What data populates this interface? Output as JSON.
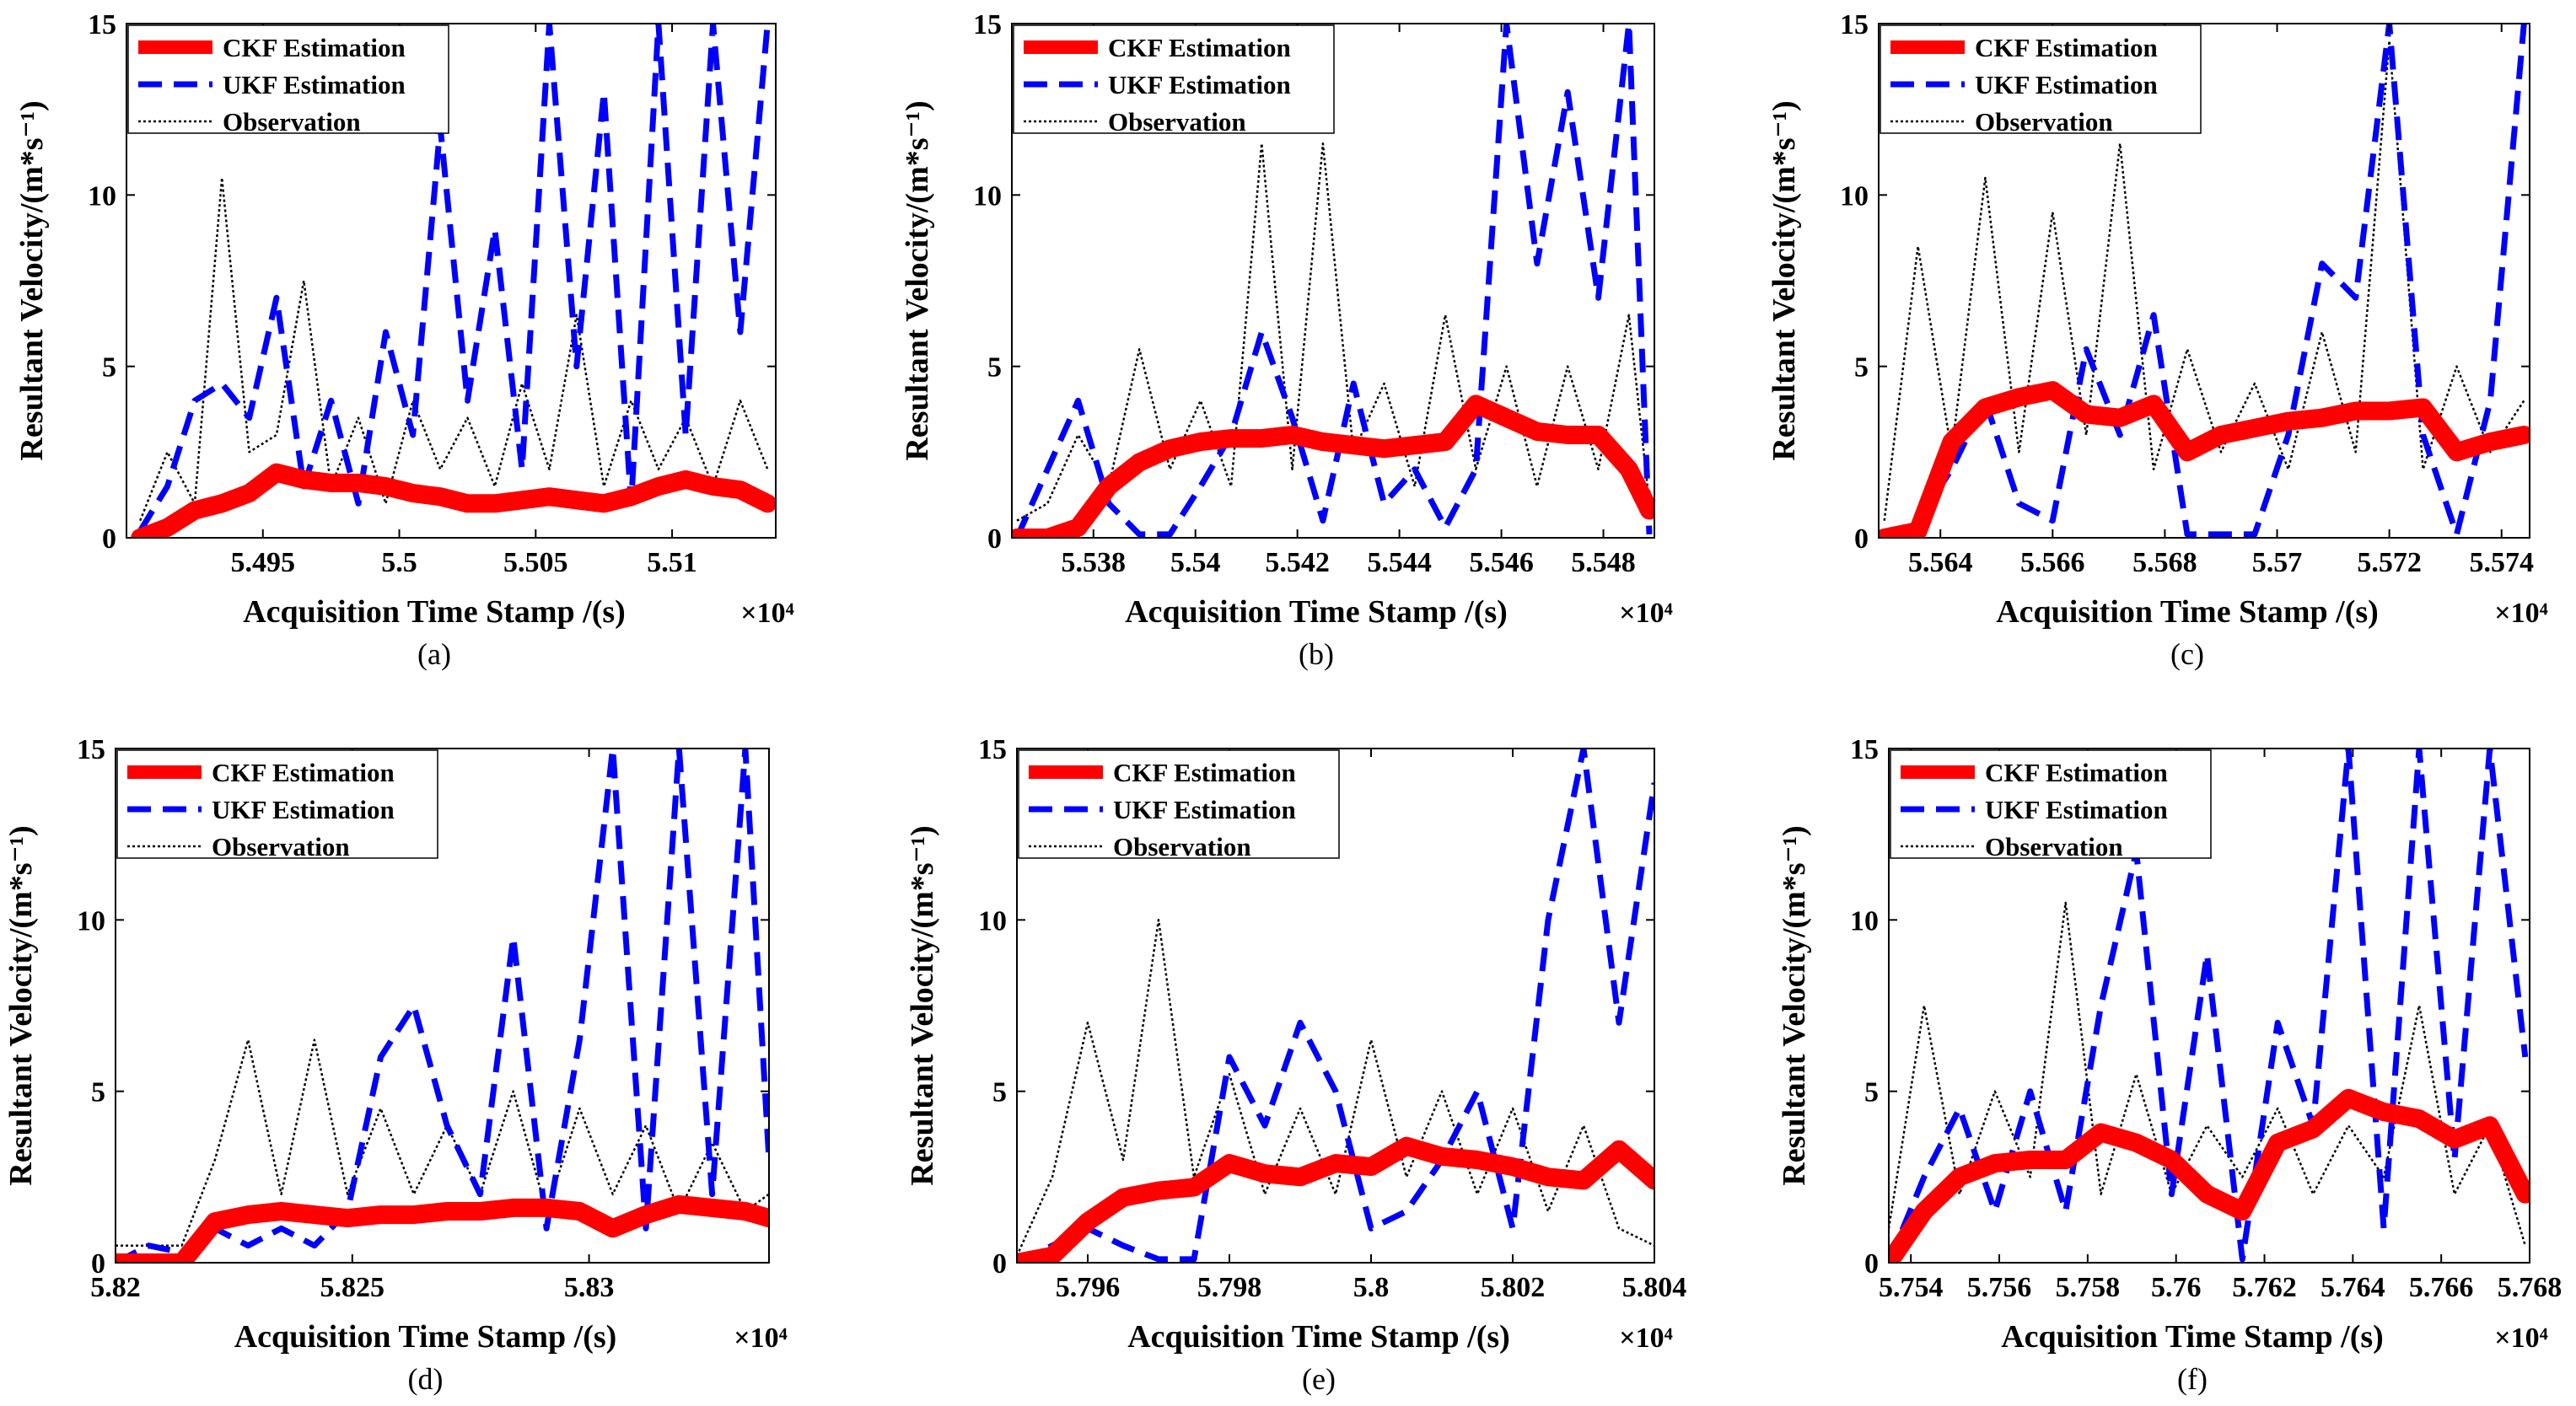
{
  "figure": {
    "legend_entries": [
      "CKF Estimation",
      "UKF Estimation",
      "Observation"
    ],
    "ylabel": "Resultant Velocity/(m*s⁻¹)",
    "xlabel": "Acquisition Time Stamp /(s)",
    "x_exponent": "×10⁴"
  },
  "styles": {
    "ckf_color": "#ff0000",
    "ukf_color": "#0000ff",
    "obs_color": "#000000"
  },
  "chart_data": [
    {
      "type": "line",
      "caption": "(a)",
      "xlim": [
        5.49,
        5.5138
      ],
      "ylim": [
        0,
        15
      ],
      "xticks": [
        5.495,
        5.5,
        5.505,
        5.51
      ],
      "xtick_labels": [
        "5.495",
        "5.5",
        "5.505",
        "5.51"
      ],
      "yticks": [
        0,
        5,
        10,
        15
      ],
      "ytick_labels": [
        "0",
        "5",
        "10",
        "15"
      ],
      "series": [
        {
          "name": "CKF Estimation",
          "x": [
            5.4905,
            5.4915,
            5.4925,
            5.4935,
            5.4945,
            5.4955,
            5.4965,
            5.4975,
            5.4985,
            5.4995,
            5.5005,
            5.5015,
            5.5025,
            5.5035,
            5.5045,
            5.5055,
            5.5065,
            5.5075,
            5.5085,
            5.5095,
            5.5105,
            5.5115,
            5.5125,
            5.5135
          ],
          "y": [
            0.0,
            0.3,
            0.8,
            1.0,
            1.3,
            1.9,
            1.7,
            1.6,
            1.6,
            1.5,
            1.3,
            1.2,
            1.0,
            1.0,
            1.1,
            1.2,
            1.1,
            1.0,
            1.2,
            1.5,
            1.7,
            1.5,
            1.4,
            1.0
          ]
        },
        {
          "name": "UKF Estimation",
          "x": [
            5.4905,
            5.4915,
            5.4925,
            5.4935,
            5.4945,
            5.4955,
            5.4965,
            5.4975,
            5.4985,
            5.4995,
            5.5005,
            5.5015,
            5.5025,
            5.5035,
            5.5045,
            5.5055,
            5.5065,
            5.5075,
            5.5085,
            5.5095,
            5.5105,
            5.5115,
            5.5125,
            5.5135
          ],
          "y": [
            0.2,
            1.5,
            4.0,
            4.5,
            3.5,
            7.0,
            1.5,
            4.0,
            1.0,
            6.0,
            3.0,
            12.0,
            4.0,
            9.0,
            2.0,
            15.0,
            5.0,
            13.0,
            1.0,
            15.0,
            3.0,
            15.0,
            6.0,
            15.0
          ]
        },
        {
          "name": "Observation",
          "x": [
            5.4905,
            5.4915,
            5.4925,
            5.4935,
            5.4945,
            5.4955,
            5.4965,
            5.4975,
            5.4985,
            5.4995,
            5.5005,
            5.5015,
            5.5025,
            5.5035,
            5.5045,
            5.5055,
            5.5065,
            5.5075,
            5.5085,
            5.5095,
            5.5105,
            5.5115,
            5.5125,
            5.5135
          ],
          "y": [
            0.5,
            2.5,
            1.0,
            10.5,
            2.5,
            3.0,
            7.5,
            1.5,
            3.5,
            1.0,
            4.0,
            2.0,
            3.5,
            1.5,
            4.5,
            2.0,
            6.5,
            1.5,
            4.0,
            2.0,
            3.5,
            1.5,
            4.0,
            2.0
          ]
        }
      ]
    },
    {
      "type": "line",
      "caption": "(b)",
      "xlim": [
        5.5364,
        5.549
      ],
      "ylim": [
        0,
        15
      ],
      "xticks": [
        5.538,
        5.54,
        5.542,
        5.544,
        5.546,
        5.548
      ],
      "xtick_labels": [
        "5.538",
        "5.54",
        "5.542",
        "5.544",
        "5.546",
        "5.548"
      ],
      "yticks": [
        0,
        5,
        10,
        15
      ],
      "ytick_labels": [
        "0",
        "5",
        "10",
        "15"
      ],
      "series": [
        {
          "name": "CKF Estimation",
          "x": [
            5.5365,
            5.5371,
            5.5377,
            5.5383,
            5.5389,
            5.5395,
            5.5401,
            5.5407,
            5.5413,
            5.5419,
            5.5425,
            5.5431,
            5.5437,
            5.5443,
            5.5449,
            5.5455,
            5.5461,
            5.5467,
            5.5473,
            5.5479,
            5.5485,
            5.5489
          ],
          "y": [
            0.0,
            0.0,
            0.3,
            1.5,
            2.2,
            2.6,
            2.8,
            2.9,
            2.9,
            3.0,
            2.8,
            2.7,
            2.6,
            2.7,
            2.8,
            3.9,
            3.5,
            3.1,
            3.0,
            3.0,
            2.0,
            0.8
          ]
        },
        {
          "name": "UKF Estimation",
          "x": [
            5.5365,
            5.5371,
            5.5377,
            5.5383,
            5.5389,
            5.5395,
            5.5401,
            5.5407,
            5.5413,
            5.5419,
            5.5425,
            5.5431,
            5.5437,
            5.5443,
            5.5449,
            5.5455,
            5.5461,
            5.5467,
            5.5473,
            5.5479,
            5.5485,
            5.5489
          ],
          "y": [
            0.0,
            2.0,
            4.0,
            1.0,
            0.1,
            0.1,
            1.5,
            3.0,
            6.0,
            3.5,
            0.5,
            4.5,
            1.0,
            2.0,
            0.3,
            2.0,
            15.0,
            8.0,
            13.0,
            7.0,
            15.0,
            0.1
          ]
        },
        {
          "name": "Observation",
          "x": [
            5.5365,
            5.5371,
            5.5377,
            5.5383,
            5.5389,
            5.5395,
            5.5401,
            5.5407,
            5.5413,
            5.5419,
            5.5425,
            5.5431,
            5.5437,
            5.5443,
            5.5449,
            5.5455,
            5.5461,
            5.5467,
            5.5473,
            5.5479,
            5.5485,
            5.5489
          ],
          "y": [
            0.5,
            1.0,
            3.0,
            1.5,
            5.5,
            2.0,
            4.0,
            1.5,
            11.5,
            2.0,
            11.5,
            2.5,
            4.5,
            1.5,
            6.5,
            2.0,
            5.0,
            1.5,
            5.0,
            2.0,
            6.5,
            1.0
          ]
        }
      ]
    },
    {
      "type": "line",
      "caption": "(c)",
      "xlim": [
        5.5629,
        5.5745
      ],
      "ylim": [
        0,
        15
      ],
      "xticks": [
        5.564,
        5.566,
        5.568,
        5.57,
        5.572,
        5.574
      ],
      "xtick_labels": [
        "5.564",
        "5.566",
        "5.568",
        "5.57",
        "5.572",
        "5.574"
      ],
      "yticks": [
        0,
        5,
        10,
        15
      ],
      "ytick_labels": [
        "0",
        "5",
        "10",
        "15"
      ],
      "series": [
        {
          "name": "CKF Estimation",
          "x": [
            5.563,
            5.5636,
            5.5642,
            5.5648,
            5.5654,
            5.566,
            5.5666,
            5.5672,
            5.5678,
            5.5684,
            5.569,
            5.5696,
            5.5702,
            5.5708,
            5.5714,
            5.572,
            5.5726,
            5.5732,
            5.5738,
            5.5744
          ],
          "y": [
            0.0,
            0.2,
            2.8,
            3.8,
            4.1,
            4.3,
            3.6,
            3.5,
            3.9,
            2.5,
            3.0,
            3.2,
            3.4,
            3.5,
            3.7,
            3.7,
            3.8,
            2.5,
            2.8,
            3.0
          ]
        },
        {
          "name": "UKF Estimation",
          "x": [
            5.563,
            5.5636,
            5.5642,
            5.5648,
            5.5654,
            5.566,
            5.5666,
            5.5672,
            5.5678,
            5.5684,
            5.569,
            5.5696,
            5.5702,
            5.5708,
            5.5714,
            5.572,
            5.5726,
            5.5732,
            5.5738,
            5.5744
          ],
          "y": [
            0.0,
            0.5,
            2.0,
            4.0,
            1.0,
            0.5,
            5.5,
            3.0,
            6.5,
            0.1,
            0.1,
            0.1,
            3.0,
            8.0,
            7.0,
            15.0,
            3.0,
            0.1,
            4.0,
            15.0
          ]
        },
        {
          "name": "Observation",
          "x": [
            5.563,
            5.5636,
            5.5642,
            5.5648,
            5.5654,
            5.566,
            5.5666,
            5.5672,
            5.5678,
            5.5684,
            5.569,
            5.5696,
            5.5702,
            5.5708,
            5.5714,
            5.572,
            5.5726,
            5.5732,
            5.5738,
            5.5744
          ],
          "y": [
            0.5,
            8.5,
            2.5,
            10.5,
            2.5,
            9.5,
            3.0,
            11.5,
            2.0,
            5.5,
            2.5,
            4.5,
            2.0,
            6.0,
            2.5,
            14.5,
            2.0,
            5.0,
            2.5,
            4.0
          ]
        }
      ]
    },
    {
      "type": "line",
      "caption": "(d)",
      "xlim": [
        5.82,
        5.8338
      ],
      "ylim": [
        0,
        15
      ],
      "xticks": [
        5.82,
        5.825,
        5.83
      ],
      "xtick_labels": [
        "5.82",
        "5.825",
        "5.83"
      ],
      "yticks": [
        0,
        5,
        10,
        15
      ],
      "ytick_labels": [
        "0",
        "5",
        "10",
        "15"
      ],
      "series": [
        {
          "name": "CKF Estimation",
          "x": [
            5.82,
            5.8207,
            5.8214,
            5.8221,
            5.8228,
            5.8235,
            5.8242,
            5.8249,
            5.8256,
            5.8263,
            5.827,
            5.8277,
            5.8284,
            5.8291,
            5.8298,
            5.8305,
            5.8312,
            5.8319,
            5.8326,
            5.8333,
            5.8338
          ],
          "y": [
            0.0,
            0.0,
            0.0,
            1.2,
            1.4,
            1.5,
            1.4,
            1.3,
            1.4,
            1.4,
            1.5,
            1.5,
            1.6,
            1.6,
            1.5,
            1.0,
            1.4,
            1.7,
            1.6,
            1.5,
            1.3
          ]
        },
        {
          "name": "UKF Estimation",
          "x": [
            5.82,
            5.8207,
            5.8214,
            5.8221,
            5.8228,
            5.8235,
            5.8242,
            5.8249,
            5.8256,
            5.8263,
            5.827,
            5.8277,
            5.8284,
            5.8291,
            5.8298,
            5.8305,
            5.8312,
            5.8319,
            5.8326,
            5.8333,
            5.8338
          ],
          "y": [
            0.0,
            0.5,
            0.3,
            1.0,
            0.5,
            1.0,
            0.5,
            1.5,
            6.0,
            7.5,
            4.0,
            2.0,
            9.5,
            1.0,
            6.5,
            15.0,
            1.0,
            15.0,
            2.0,
            15.0,
            3.0
          ]
        },
        {
          "name": "Observation",
          "x": [
            5.82,
            5.8207,
            5.8214,
            5.8221,
            5.8228,
            5.8235,
            5.8242,
            5.8249,
            5.8256,
            5.8263,
            5.827,
            5.8277,
            5.8284,
            5.8291,
            5.8298,
            5.8305,
            5.8312,
            5.8319,
            5.8326,
            5.8333,
            5.8338
          ],
          "y": [
            0.5,
            0.5,
            0.5,
            3.0,
            6.5,
            2.0,
            6.5,
            2.0,
            4.5,
            2.0,
            4.0,
            2.0,
            5.0,
            1.5,
            4.5,
            2.0,
            4.0,
            1.5,
            3.5,
            1.5,
            2.0
          ]
        }
      ]
    },
    {
      "type": "line",
      "caption": "(e)",
      "xlim": [
        5.795,
        5.804
      ],
      "ylim": [
        0,
        15
      ],
      "xticks": [
        5.796,
        5.798,
        5.8,
        5.802,
        5.804
      ],
      "xtick_labels": [
        "5.796",
        "5.798",
        "5.8",
        "5.802",
        "5.804"
      ],
      "yticks": [
        0,
        5,
        10,
        15
      ],
      "ytick_labels": [
        "0",
        "5",
        "10",
        "15"
      ],
      "series": [
        {
          "name": "CKF Estimation",
          "x": [
            5.795,
            5.7955,
            5.796,
            5.7965,
            5.797,
            5.7975,
            5.798,
            5.7985,
            5.799,
            5.7995,
            5.8,
            5.8005,
            5.801,
            5.8015,
            5.802,
            5.8025,
            5.803,
            5.8035,
            5.804
          ],
          "y": [
            0.0,
            0.2,
            1.2,
            1.9,
            2.1,
            2.2,
            2.9,
            2.6,
            2.5,
            2.9,
            2.8,
            3.4,
            3.1,
            3.0,
            2.8,
            2.5,
            2.4,
            3.3,
            2.4
          ]
        },
        {
          "name": "UKF Estimation",
          "x": [
            5.795,
            5.7955,
            5.796,
            5.7965,
            5.797,
            5.7975,
            5.798,
            5.7985,
            5.799,
            5.7995,
            5.8,
            5.8005,
            5.801,
            5.8015,
            5.802,
            5.8025,
            5.803,
            5.8035,
            5.804
          ],
          "y": [
            0.0,
            0.5,
            1.0,
            0.5,
            0.1,
            0.1,
            6.0,
            4.0,
            7.0,
            5.0,
            1.0,
            1.5,
            3.0,
            5.0,
            1.0,
            10.0,
            15.0,
            7.0,
            14.0
          ]
        },
        {
          "name": "Observation",
          "x": [
            5.795,
            5.7955,
            5.796,
            5.7965,
            5.797,
            5.7975,
            5.798,
            5.7985,
            5.799,
            5.7995,
            5.8,
            5.8005,
            5.801,
            5.8015,
            5.802,
            5.8025,
            5.803,
            5.8035,
            5.804
          ],
          "y": [
            0.2,
            2.5,
            7.0,
            3.0,
            10.0,
            2.5,
            5.5,
            2.0,
            4.5,
            2.0,
            6.5,
            2.5,
            5.0,
            2.0,
            4.5,
            1.5,
            4.0,
            1.0,
            0.5
          ]
        }
      ]
    },
    {
      "type": "line",
      "caption": "(f)",
      "xlim": [
        5.7535,
        5.768
      ],
      "ylim": [
        0,
        15
      ],
      "xticks": [
        5.754,
        5.756,
        5.758,
        5.76,
        5.762,
        5.764,
        5.766,
        5.768
      ],
      "xtick_labels": [
        "5.754",
        "5.756",
        "5.758",
        "5.76",
        "5.762",
        "5.764",
        "5.766",
        "5.768"
      ],
      "yticks": [
        0,
        5,
        10,
        15
      ],
      "ytick_labels": [
        "0",
        "5",
        "10",
        "15"
      ],
      "series": [
        {
          "name": "CKF Estimation",
          "x": [
            5.7535,
            5.7543,
            5.7551,
            5.7559,
            5.7567,
            5.7575,
            5.7583,
            5.7591,
            5.7599,
            5.7607,
            5.7615,
            5.7623,
            5.7631,
            5.7639,
            5.7647,
            5.7655,
            5.7663,
            5.7671,
            5.7679
          ],
          "y": [
            0.0,
            1.5,
            2.5,
            2.9,
            3.0,
            3.0,
            3.8,
            3.5,
            3.0,
            2.0,
            1.5,
            3.5,
            3.9,
            4.8,
            4.4,
            4.2,
            3.6,
            4.0,
            2.0
          ]
        },
        {
          "name": "UKF Estimation",
          "x": [
            5.7535,
            5.7543,
            5.7551,
            5.7559,
            5.7567,
            5.7575,
            5.7583,
            5.7591,
            5.7599,
            5.7607,
            5.7615,
            5.7623,
            5.7631,
            5.7639,
            5.7647,
            5.7655,
            5.7663,
            5.7671,
            5.7679
          ],
          "y": [
            0.0,
            2.5,
            4.5,
            1.5,
            5.0,
            1.5,
            7.5,
            12.0,
            2.0,
            9.0,
            0.1,
            7.0,
            4.0,
            15.0,
            1.0,
            15.0,
            3.0,
            15.0,
            6.0
          ]
        },
        {
          "name": "Observation",
          "x": [
            5.7535,
            5.7543,
            5.7551,
            5.7559,
            5.7567,
            5.7575,
            5.7583,
            5.7591,
            5.7599,
            5.7607,
            5.7615,
            5.7623,
            5.7631,
            5.7639,
            5.7647,
            5.7655,
            5.7663,
            5.7671,
            5.7679
          ],
          "y": [
            1.0,
            7.5,
            2.0,
            5.0,
            2.5,
            10.5,
            2.0,
            5.5,
            2.0,
            4.0,
            2.5,
            4.5,
            2.0,
            4.0,
            2.5,
            7.5,
            2.0,
            4.0,
            0.5
          ]
        }
      ]
    }
  ]
}
